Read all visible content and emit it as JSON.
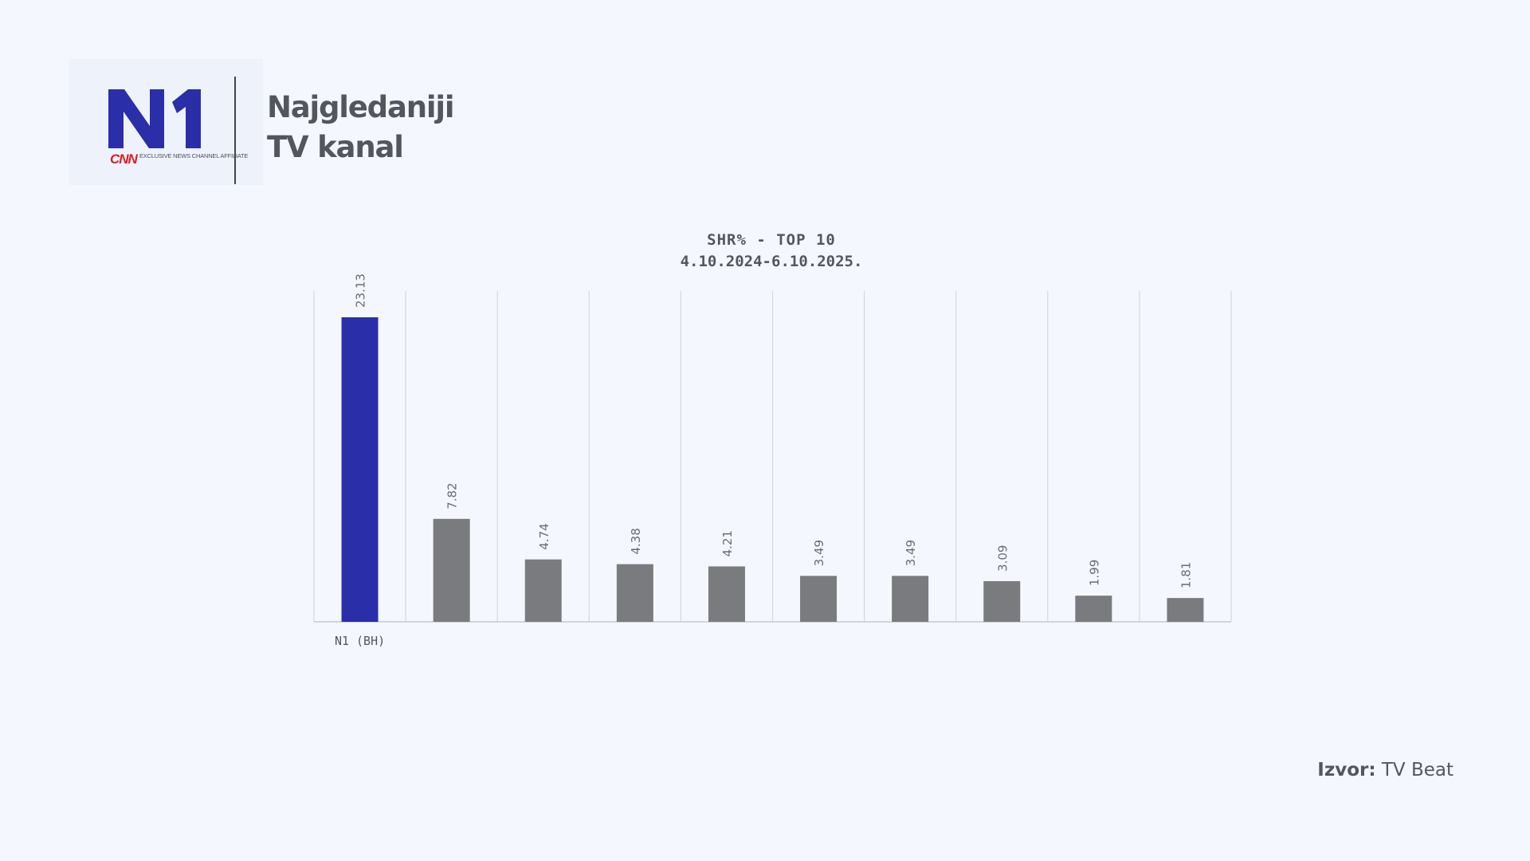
{
  "header": {
    "logo_mark": "N1",
    "logo_network": "CNN",
    "logo_tagline": "EXCLUSIVE NEWS CHANNEL AFFILIATE",
    "title_line1": "Najgledaniji",
    "title_line2": "TV kanal"
  },
  "colors": {
    "highlight": "#2a2ea8",
    "bar": "#7a7b7f",
    "brand_red": "#e21a23",
    "text": "#54565f"
  },
  "chart_data": {
    "type": "bar",
    "title": "SHR% - TOP 10",
    "subtitle": "4.10.2024-6.10.2025.",
    "categories": [
      "N1 (BH)",
      "",
      "",
      "",
      "",
      "",
      "",
      "",
      "",
      ""
    ],
    "values": [
      23.13,
      7.82,
      4.74,
      4.38,
      4.21,
      3.49,
      3.49,
      3.09,
      1.99,
      1.81
    ],
    "value_labels": [
      "23.13",
      "7.82",
      "4.74",
      "4.38",
      "4.21",
      "3.49",
      "3.49",
      "3.09",
      "1.99",
      "1.81"
    ],
    "highlight_index": 0,
    "xlabel": "",
    "ylabel": "",
    "ylim": [
      0,
      25
    ],
    "grid": "vertical"
  },
  "footer": {
    "source_label": "Izvor:",
    "source_value": "TV Beat"
  }
}
